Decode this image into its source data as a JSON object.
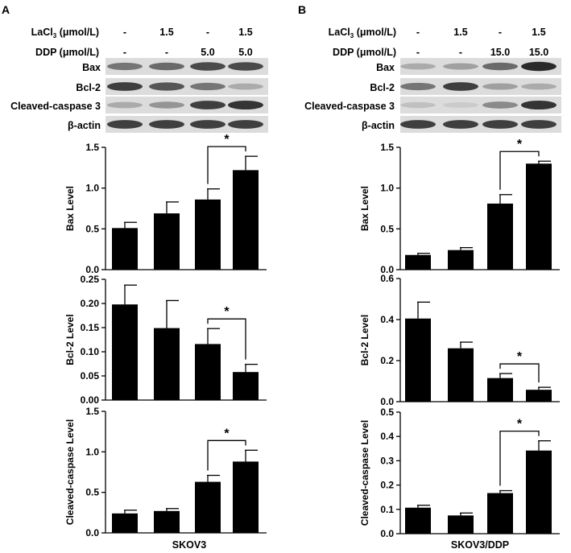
{
  "panels": [
    {
      "letter": "A",
      "treatments": [
        {
          "label": "LaCl",
          "sub": "3",
          "unit": " (μmol/L)",
          "values": [
            "-",
            "1.5",
            "-",
            "1.5"
          ]
        },
        {
          "label": "DDP (μmol/L)",
          "sub": "",
          "unit": "",
          "values": [
            "-",
            "-",
            "5.0",
            "5.0"
          ]
        }
      ],
      "blot_labels": [
        "Bax",
        "Bcl-2",
        "Cleaved-caspase 3",
        "β-actin"
      ],
      "blot_intensity": [
        [
          0.55,
          0.6,
          0.75,
          0.75
        ],
        [
          0.8,
          0.7,
          0.55,
          0.3
        ],
        [
          0.3,
          0.4,
          0.8,
          0.85
        ],
        [
          0.8,
          0.8,
          0.8,
          0.8
        ]
      ],
      "xlabel": "SKOV3"
    },
    {
      "letter": "B",
      "treatments": [
        {
          "label": "LaCl",
          "sub": "3",
          "unit": " (μmol/L)",
          "values": [
            "-",
            "1.5",
            "-",
            "1.5"
          ]
        },
        {
          "label": "DDP (μmol/L)",
          "sub": "",
          "unit": "",
          "values": [
            "-",
            "-",
            "15.0",
            "15.0"
          ]
        }
      ],
      "blot_labels": [
        "Bax",
        "Bcl-2",
        "Cleaved-caspase 3",
        "β-actin"
      ],
      "blot_intensity": [
        [
          0.3,
          0.35,
          0.6,
          0.9
        ],
        [
          0.55,
          0.8,
          0.35,
          0.3
        ],
        [
          0.2,
          0.15,
          0.45,
          0.85
        ],
        [
          0.8,
          0.8,
          0.8,
          0.8
        ]
      ],
      "xlabel": "SKOV3/DDP"
    }
  ],
  "chart_data": [
    {
      "panel": "A",
      "type": "bar",
      "ylabel": "Bax Level",
      "ylim": [
        0,
        1.5
      ],
      "yticks": [
        "0.0",
        "0.5",
        "1.0",
        "1.5"
      ],
      "values": [
        0.51,
        0.69,
        0.86,
        1.22
      ],
      "errors": [
        0.07,
        0.14,
        0.13,
        0.17
      ],
      "sig": {
        "from": 2,
        "to": 3,
        "label": "*"
      }
    },
    {
      "panel": "A",
      "type": "bar",
      "ylabel": "Bcl-2 Level",
      "ylim": [
        0,
        0.25
      ],
      "yticks": [
        "0.00",
        "0.05",
        "0.10",
        "0.15",
        "0.20",
        "0.25"
      ],
      "values": [
        0.198,
        0.149,
        0.116,
        0.058
      ],
      "errors": [
        0.04,
        0.057,
        0.032,
        0.016
      ],
      "sig": {
        "from": 2,
        "to": 3,
        "label": "*"
      }
    },
    {
      "panel": "A",
      "type": "bar",
      "ylabel": "Cleaved-caspase Level",
      "ylim": [
        0,
        1.5
      ],
      "yticks": [
        "0.0",
        "0.5",
        "1.0",
        "1.5"
      ],
      "values": [
        0.24,
        0.27,
        0.63,
        0.88
      ],
      "errors": [
        0.04,
        0.03,
        0.08,
        0.14
      ],
      "sig": {
        "from": 2,
        "to": 3,
        "label": "*"
      }
    },
    {
      "panel": "B",
      "type": "bar",
      "ylabel": "Bax Level",
      "ylim": [
        0,
        1.5
      ],
      "yticks": [
        "0.0",
        "0.5",
        "1.0",
        "1.5"
      ],
      "values": [
        0.18,
        0.24,
        0.81,
        1.3
      ],
      "errors": [
        0.02,
        0.03,
        0.11,
        0.03
      ],
      "sig": {
        "from": 2,
        "to": 3,
        "label": "*"
      }
    },
    {
      "panel": "B",
      "type": "bar",
      "ylabel": "Bcl-2 Level",
      "ylim": [
        0,
        0.6
      ],
      "yticks": [
        "0.0",
        "0.2",
        "0.4",
        "0.6"
      ],
      "values": [
        0.405,
        0.26,
        0.115,
        0.058
      ],
      "errors": [
        0.08,
        0.03,
        0.022,
        0.012
      ],
      "sig": {
        "from": 2,
        "to": 3,
        "label": "*"
      }
    },
    {
      "panel": "B",
      "type": "bar",
      "ylabel": "Cleaved-caspase Level",
      "ylim": [
        0,
        0.5
      ],
      "yticks": [
        "0.0",
        "0.1",
        "0.2",
        "0.3",
        "0.4",
        "0.5"
      ],
      "values": [
        0.107,
        0.075,
        0.167,
        0.342
      ],
      "errors": [
        0.01,
        0.01,
        0.01,
        0.04
      ],
      "sig": {
        "from": 2,
        "to": 3,
        "label": "*"
      }
    }
  ]
}
